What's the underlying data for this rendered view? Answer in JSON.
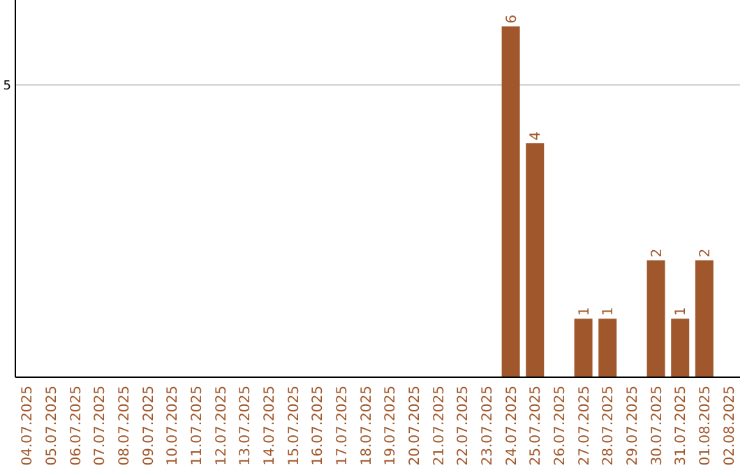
{
  "chart_data": {
    "type": "bar",
    "categories": [
      "04.07.2025",
      "05.07.2025",
      "06.07.2025",
      "07.07.2025",
      "08.07.2025",
      "09.07.2025",
      "10.07.2025",
      "11.07.2025",
      "12.07.2025",
      "13.07.2025",
      "14.07.2025",
      "15.07.2025",
      "16.07.2025",
      "17.07.2025",
      "18.07.2025",
      "19.07.2025",
      "20.07.2025",
      "21.07.2025",
      "22.07.2025",
      "23.07.2025",
      "24.07.2025",
      "25.07.2025",
      "26.07.2025",
      "27.07.2025",
      "28.07.2025",
      "29.07.2025",
      "30.07.2025",
      "31.07.2025",
      "01.08.2025",
      "02.08.2025"
    ],
    "values": [
      null,
      null,
      null,
      null,
      null,
      null,
      null,
      null,
      null,
      null,
      null,
      null,
      null,
      null,
      null,
      null,
      null,
      null,
      null,
      null,
      6,
      4,
      null,
      1,
      1,
      null,
      2,
      1,
      2,
      null
    ],
    "data_labels": true,
    "color": "#a0572b",
    "ylim": [
      0,
      6.45
    ],
    "yticks": [
      5
    ],
    "grid": "y"
  }
}
